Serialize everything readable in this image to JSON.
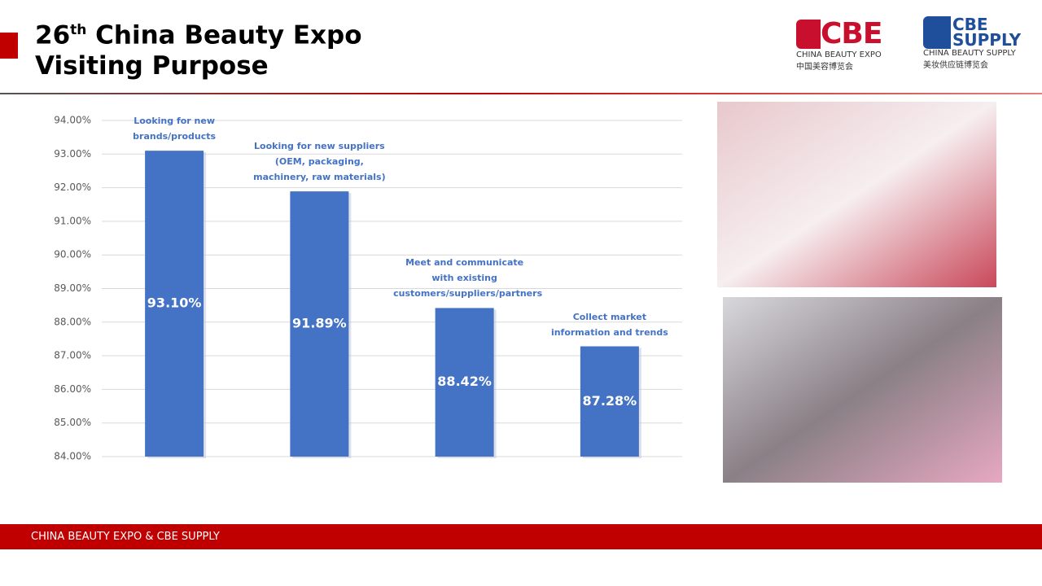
{
  "header": {
    "title_number": "26",
    "title_suffix": "th",
    "title_rest": "China Beauty Expo",
    "title_line2": "Visiting Purpose"
  },
  "logos": {
    "cbe": {
      "mark": "CBE",
      "name": "CHINA BEAUTY EXPO",
      "name_cn": "中国美容博览会"
    },
    "supply": {
      "mark1": "CBE",
      "mark2": "SUPPLY",
      "name": "CHINA BEAUTY SUPPLY",
      "name_cn": "美妆供应链博览会"
    }
  },
  "chart_data": {
    "type": "bar",
    "categories": [
      "Looking for new brands/products",
      "Looking for new suppliers (OEM, packaging, machinery, raw materials)",
      "Meet and communicate with existing customers/suppliers/partners",
      "Collect market information and trends"
    ],
    "values": [
      93.1,
      91.89,
      88.42,
      87.28
    ],
    "value_labels": [
      "93.10%",
      "91.89%",
      "88.42%",
      "87.28%"
    ],
    "color": "#4472c4",
    "ylim": [
      84,
      94
    ],
    "yticks": [
      {
        "value": 84,
        "label": "84.00%"
      },
      {
        "value": 85,
        "label": "85.00%"
      },
      {
        "value": 86,
        "label": "86.00%"
      },
      {
        "value": 87,
        "label": "87.00%"
      },
      {
        "value": 88,
        "label": "88.00%"
      },
      {
        "value": 89,
        "label": "89.00%"
      },
      {
        "value": 90,
        "label": "90.00%"
      },
      {
        "value": 91,
        "label": "91.00%"
      },
      {
        "value": 92,
        "label": "92.00%"
      },
      {
        "value": 93,
        "label": "93.00%"
      },
      {
        "value": 94,
        "label": "94.00%"
      }
    ],
    "grid": true
  },
  "footer": {
    "text": "CHINA BEAUTY EXPO & CBE SUPPLY"
  }
}
